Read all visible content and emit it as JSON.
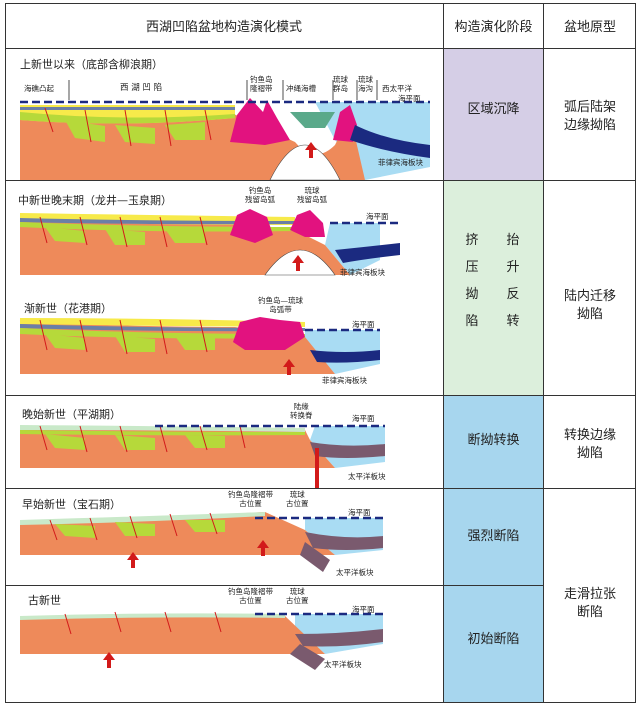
{
  "header": {
    "col1": "西湖凹陷盆地构造演化模式",
    "col2": "构造演化阶段",
    "col3": "盆地原型"
  },
  "rows": [
    {
      "title": "上新世以来（底部含柳浪期）",
      "labels": [
        "海礁凸起",
        "西 湖 凹 陷",
        "钓鱼岛\n隆褶带",
        "冲绳海槽",
        "琉球\n群岛",
        "琉球\n海沟",
        "西太平洋",
        "海平面",
        "菲律宾海板块"
      ]
    },
    {
      "title": "中新世晚末期（龙井—玉泉期）",
      "labels": [
        "钓鱼岛\n残留岛弧",
        "琉球\n残留岛弧",
        "海平面",
        "菲律宾海板块"
      ]
    },
    {
      "title": "渐新世（花港期）",
      "labels": [
        "钓鱼岛—琉球\n岛弧带",
        "海平面",
        "菲律宾海板块"
      ]
    },
    {
      "title": "晚始新世（平湖期）",
      "labels": [
        "陆缘\n转换脊",
        "海平面",
        "太平洋板块"
      ]
    },
    {
      "title": "早始新世（宝石期）",
      "labels": [
        "钓鱼岛隆褶带\n古位置",
        "琉球\n古位置",
        "海平面",
        "太平洋板块"
      ]
    },
    {
      "title": "古新世",
      "labels": [
        "钓鱼岛隆褶带\n古位置",
        "琉球\n古位置",
        "海平面",
        "太平洋板块"
      ]
    }
  ],
  "stages": {
    "s1": "区域沉降",
    "s2_left": "挤\n压\n拗\n陷",
    "s2_right": "抬\n升\n反\n转",
    "s3": "断拗转换",
    "s4": "强烈断陷",
    "s5": "初始断陷"
  },
  "prototypes": {
    "p1": "弧后陆架\n边缘拗陷",
    "p2": "陆内迁移\n拗陷",
    "p3": "转换边缘\n拗陷",
    "p4": "走滑拉张\n断陷"
  },
  "colors": {
    "purple": "#d5cee6",
    "green": "#dcefdc",
    "blue": "#a7d6ee",
    "orange": "#ee8a5a",
    "magenta": "#e2127f",
    "sea": "#a9dcf3",
    "slab_navy": "#1b2a80",
    "slab_mauve": "#7a5a6e",
    "lime": "#b6d93a",
    "yellow": "#f7ea4a",
    "arrow": "#d21a1a"
  }
}
